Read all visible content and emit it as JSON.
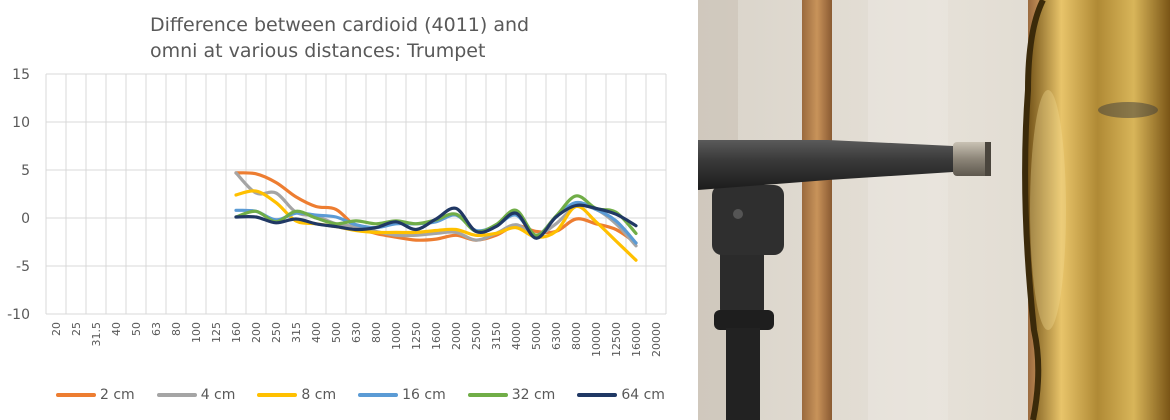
{
  "chart_data": {
    "type": "line",
    "title_lines": [
      "Difference between cardioid (4011) and",
      "omni at various distances: Trumpet"
    ],
    "xlabel": "",
    "ylabel": "",
    "ylim": [
      -10,
      15
    ],
    "yticks": [
      -10,
      -5,
      0,
      5,
      10,
      15
    ],
    "grid": true,
    "legend_position": "bottom",
    "categories": [
      "20",
      "25",
      "31.5",
      "40",
      "50",
      "63",
      "80",
      "100",
      "125",
      "160",
      "200",
      "250",
      "315",
      "400",
      "500",
      "630",
      "800",
      "1000",
      "1250",
      "1600",
      "2000",
      "2500",
      "3150",
      "4000",
      "5000",
      "6300",
      "8000",
      "10000",
      "12500",
      "16000",
      "20000"
    ],
    "series": [
      {
        "name": "2 cm",
        "color": "#ED7D31",
        "values": [
          null,
          null,
          null,
          null,
          null,
          null,
          null,
          null,
          null,
          4.7,
          4.6,
          3.7,
          2.2,
          1.2,
          0.9,
          -0.9,
          -1.6,
          -2.0,
          -2.3,
          -2.2,
          -1.8,
          -2.3,
          -1.8,
          -0.8,
          -1.4,
          -1.4,
          -0.1,
          -0.6,
          -1.2,
          -2.6,
          null
        ]
      },
      {
        "name": "4 cm",
        "color": "#A5A5A5",
        "values": [
          null,
          null,
          null,
          null,
          null,
          null,
          null,
          null,
          null,
          4.7,
          2.6,
          2.6,
          0.6,
          0.2,
          -0.6,
          -0.9,
          -1.4,
          -1.8,
          -1.8,
          -1.6,
          -1.5,
          -2.3,
          -1.6,
          -0.7,
          -1.8,
          -0.6,
          1.2,
          0.9,
          -0.6,
          -2.9,
          null
        ]
      },
      {
        "name": "8 cm",
        "color": "#FFC000",
        "values": [
          null,
          null,
          null,
          null,
          null,
          null,
          null,
          null,
          null,
          2.4,
          2.8,
          1.6,
          -0.3,
          -0.6,
          -0.9,
          -1.3,
          -1.5,
          -1.5,
          -1.5,
          -1.3,
          -1.2,
          -1.8,
          -1.6,
          -1.0,
          -2.0,
          -1.4,
          1.2,
          -0.4,
          -2.4,
          -4.4,
          null
        ]
      },
      {
        "name": "16 cm",
        "color": "#5B9BD5",
        "values": [
          null,
          null,
          null,
          null,
          null,
          null,
          null,
          null,
          null,
          0.8,
          0.7,
          -0.2,
          0.5,
          0.3,
          0.1,
          -0.7,
          -1.0,
          -0.6,
          -0.6,
          -0.4,
          0.3,
          -1.3,
          -0.8,
          0.3,
          -1.8,
          0.1,
          1.6,
          0.9,
          -0.3,
          -2.6,
          null
        ]
      },
      {
        "name": "32 cm",
        "color": "#70AD47",
        "values": [
          null,
          null,
          null,
          null,
          null,
          null,
          null,
          null,
          null,
          0.1,
          0.7,
          -0.4,
          0.7,
          0.0,
          -0.6,
          -0.3,
          -0.6,
          -0.3,
          -0.6,
          -0.2,
          0.4,
          -1.4,
          -0.7,
          0.8,
          -1.8,
          0.2,
          2.3,
          1.0,
          0.6,
          -1.6,
          null
        ]
      },
      {
        "name": "64 cm",
        "color": "#203864",
        "values": [
          null,
          null,
          null,
          null,
          null,
          null,
          null,
          null,
          null,
          0.1,
          0.1,
          -0.5,
          -0.1,
          -0.6,
          -0.9,
          -1.2,
          -1.0,
          -0.4,
          -1.2,
          -0.1,
          1.0,
          -1.4,
          -0.9,
          0.5,
          -2.1,
          0.1,
          1.3,
          1.0,
          0.4,
          -0.8,
          null
        ]
      }
    ]
  },
  "photo": {
    "subject": "cardioid microphone on stand pointed at trumpet bell"
  }
}
